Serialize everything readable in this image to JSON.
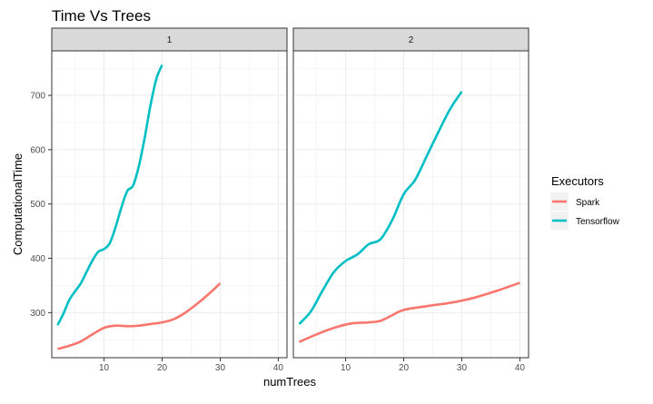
{
  "chart_data": {
    "type": "line",
    "title": "Time Vs Trees",
    "xlabel": "numTrees",
    "ylabel": "ComputationalTime",
    "xlim": [
      1,
      41.5
    ],
    "ylim": [
      217,
      782
    ],
    "x_ticks": [
      10,
      20,
      30,
      40
    ],
    "y_ticks": [
      300,
      400,
      500,
      600,
      700
    ],
    "grid": true,
    "legend": {
      "title": "Executors",
      "position": "right",
      "entries": [
        {
          "label": "Spark",
          "color": "#F8766D"
        },
        {
          "label": "Tensorflow",
          "color": "#00BFC4"
        }
      ]
    },
    "panels": [
      {
        "label": "1",
        "series": [
          {
            "name": "Spark",
            "color": "#F8766D",
            "x": [
              2,
              4,
              6,
              8,
              10,
              12,
              14,
              16,
              18,
              20,
              22,
              24,
              26,
              28,
              30
            ],
            "y": [
              233,
              239,
              247,
              260,
              272,
              276,
              275,
              276,
              279,
              282,
              288,
              300,
              316,
              334,
              354
            ]
          },
          {
            "name": "Tensorflow",
            "color": "#00BFC4",
            "x": [
              2,
              3,
              4,
              5,
              6,
              7,
              8,
              9,
              10,
              11,
              12,
              13,
              14,
              15,
              16,
              17,
              18,
              19,
              20
            ],
            "y": [
              277,
              298,
              323,
              339,
              354,
              375,
              396,
              412,
              417,
              428,
              458,
              494,
              524,
              534,
              570,
              622,
              682,
              730,
              756
            ]
          }
        ]
      },
      {
        "label": "2",
        "series": [
          {
            "name": "Spark",
            "color": "#F8766D",
            "x": [
              2,
              5,
              8,
              11,
              14,
              16,
              18,
              20,
              24,
              28,
              32,
              36,
              40
            ],
            "y": [
              246,
              260,
              272,
              280,
              282,
              285,
              295,
              305,
              312,
              318,
              327,
              340,
              355
            ]
          },
          {
            "name": "Tensorflow",
            "color": "#00BFC4",
            "x": [
              2,
              4,
              6,
              8,
              10,
              12,
              14,
              16,
              18,
              20,
              22,
              24,
              26,
              28,
              30
            ],
            "y": [
              279,
              302,
              340,
              375,
              395,
              407,
              426,
              435,
              470,
              518,
              545,
              589,
              633,
              675,
              707
            ]
          }
        ]
      }
    ]
  }
}
